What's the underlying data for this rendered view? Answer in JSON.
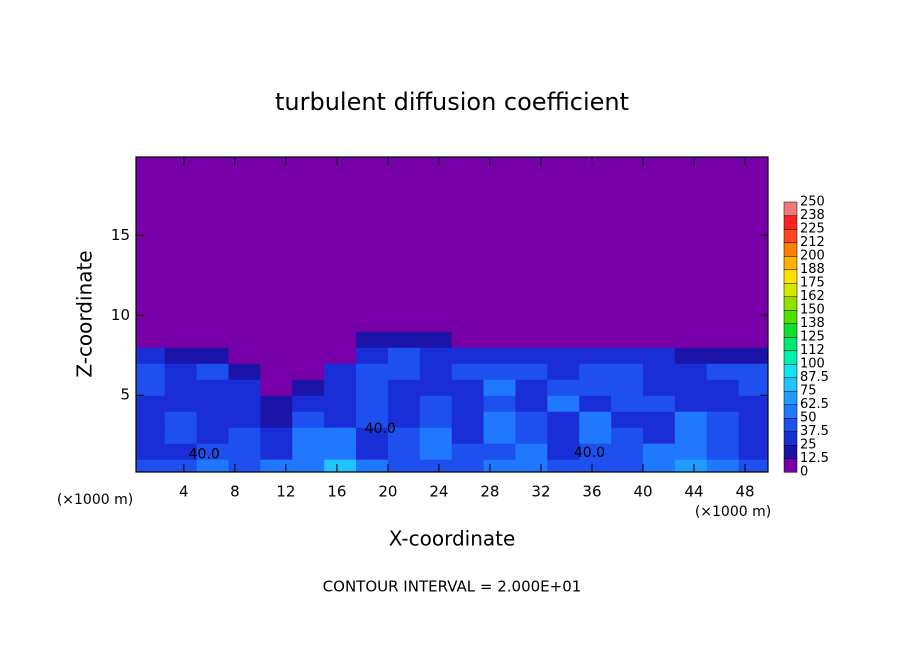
{
  "chart_data": {
    "type": "heatmap",
    "title": "turbulent diffusion coefficient",
    "xlabel": "X-coordinate",
    "ylabel": "Z-coordinate",
    "x_unit": "(×1000 m)",
    "note": "CONTOUR INTERVAL = 2.000E+01",
    "xlim": [
      0.25,
      49.8
    ],
    "ylim": [
      0.2,
      19.9
    ],
    "xticks": [
      4,
      8,
      12,
      16,
      20,
      24,
      28,
      32,
      36,
      40,
      44,
      48
    ],
    "yticks": [
      5,
      10,
      15
    ],
    "xbins": [
      0,
      2.5,
      5,
      7.5,
      10,
      12.5,
      15,
      17.5,
      20,
      22.5,
      25,
      27.5,
      30,
      32.5,
      35,
      37.5,
      40,
      42.5,
      45,
      47.5,
      50
    ],
    "ybins": [
      0,
      1,
      2,
      3,
      4,
      5,
      6,
      7,
      8,
      9,
      20
    ],
    "z": [
      [
        45,
        40,
        50,
        40,
        55,
        60,
        75,
        50,
        45,
        40,
        45,
        50,
        60,
        45,
        40,
        45,
        55,
        70,
        50,
        45
      ],
      [
        35,
        30,
        40,
        45,
        30,
        55,
        60,
        30,
        45,
        50,
        40,
        45,
        60,
        35,
        40,
        45,
        50,
        60,
        40,
        35
      ],
      [
        30,
        45,
        35,
        40,
        25,
        60,
        50,
        30,
        40,
        55,
        35,
        50,
        45,
        30,
        55,
        45,
        35,
        55,
        45,
        30
      ],
      [
        30,
        40,
        30,
        35,
        20,
        40,
        35,
        45,
        30,
        45,
        30,
        50,
        45,
        30,
        50,
        35,
        30,
        50,
        40,
        35
      ],
      [
        35,
        30,
        35,
        25,
        15,
        30,
        30,
        40,
        30,
        40,
        30,
        45,
        30,
        50,
        35,
        40,
        45,
        35,
        35,
        30
      ],
      [
        40,
        25,
        30,
        30,
        12,
        20,
        30,
        45,
        35,
        30,
        30,
        50,
        35,
        45,
        40,
        45,
        30,
        30,
        35,
        40
      ],
      [
        40,
        35,
        40,
        20,
        8,
        10,
        30,
        40,
        40,
        35,
        40,
        45,
        40,
        35,
        40,
        40,
        35,
        35,
        40,
        45
      ],
      [
        25,
        20,
        20,
        10,
        5,
        5,
        10,
        35,
        40,
        30,
        35,
        35,
        30,
        30,
        30,
        25,
        25,
        20,
        20,
        15
      ],
      [
        5,
        5,
        5,
        5,
        5,
        5,
        5,
        15,
        20,
        15,
        10,
        10,
        5,
        5,
        5,
        5,
        5,
        5,
        5,
        5
      ],
      [
        5,
        5,
        5,
        5,
        5,
        5,
        5,
        5,
        5,
        5,
        5,
        5,
        5,
        5,
        5,
        5,
        5,
        5,
        5,
        5
      ]
    ],
    "colorbar": {
      "levels": [
        0,
        12.5,
        25,
        37.5,
        50,
        62.5,
        75,
        87.5,
        100,
        112,
        125,
        138,
        150,
        162,
        175,
        188,
        200,
        212,
        225,
        238,
        250
      ],
      "colors": [
        "#7800a8",
        "#1c14a8",
        "#1a2ed8",
        "#1e50f0",
        "#2078ff",
        "#209cff",
        "#20c4ff",
        "#10e4f0",
        "#00f0b0",
        "#00e870",
        "#10e030",
        "#50e000",
        "#90e000",
        "#d0e800",
        "#ffe000",
        "#ffb000",
        "#ff8000",
        "#ff4820",
        "#ff2020",
        "#f07878"
      ]
    },
    "annotations": [
      {
        "text": "40.0",
        "x": 19.4,
        "y": 2.9
      },
      {
        "text": "40.0",
        "x": 35.8,
        "y": 1.4
      },
      {
        "text": "40.0",
        "x": 5.6,
        "y": 1.3
      }
    ]
  }
}
